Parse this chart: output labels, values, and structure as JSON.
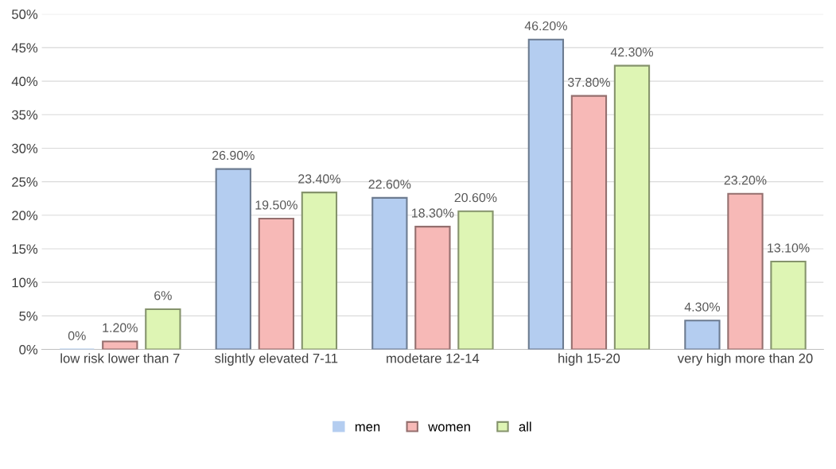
{
  "chart_data": {
    "type": "bar",
    "categories": [
      "low risk lower than 7",
      "slightly elevated 7-11",
      "modetare 12-14",
      "high 15-20",
      "very high more than 20"
    ],
    "series": [
      {
        "name": "men",
        "color": "#b4cdf0",
        "values": [
          0,
          26.9,
          22.6,
          46.2,
          4.3
        ],
        "value_labels": [
          "0%",
          "26.90%",
          "22.60%",
          "46.20%",
          "4.30%"
        ]
      },
      {
        "name": "women",
        "color": "#f7b9b7",
        "values": [
          1.2,
          19.5,
          18.3,
          37.8,
          23.2
        ],
        "value_labels": [
          "1.20%",
          "19.50%",
          "18.30%",
          "37.80%",
          "23.20%"
        ]
      },
      {
        "name": "all",
        "color": "#def5b4",
        "values": [
          6,
          23.4,
          20.6,
          42.3,
          13.1
        ],
        "value_labels": [
          "6%",
          "23.40%",
          "20.60%",
          "42.30%",
          "13.10%"
        ]
      }
    ],
    "ylim": [
      0,
      50
    ],
    "yticks": [
      {
        "value": 0,
        "label": "0%"
      },
      {
        "value": 5,
        "label": "5%"
      },
      {
        "value": 10,
        "label": "10%"
      },
      {
        "value": 15,
        "label": "15%"
      },
      {
        "value": 20,
        "label": "20%"
      },
      {
        "value": 25,
        "label": "25%"
      },
      {
        "value": 30,
        "label": "30%"
      },
      {
        "value": 35,
        "label": "35%"
      },
      {
        "value": 40,
        "label": "40%"
      },
      {
        "value": 45,
        "label": "45%"
      },
      {
        "value": 50,
        "label": "50%"
      }
    ],
    "grid": "y",
    "legend": "bottom"
  }
}
